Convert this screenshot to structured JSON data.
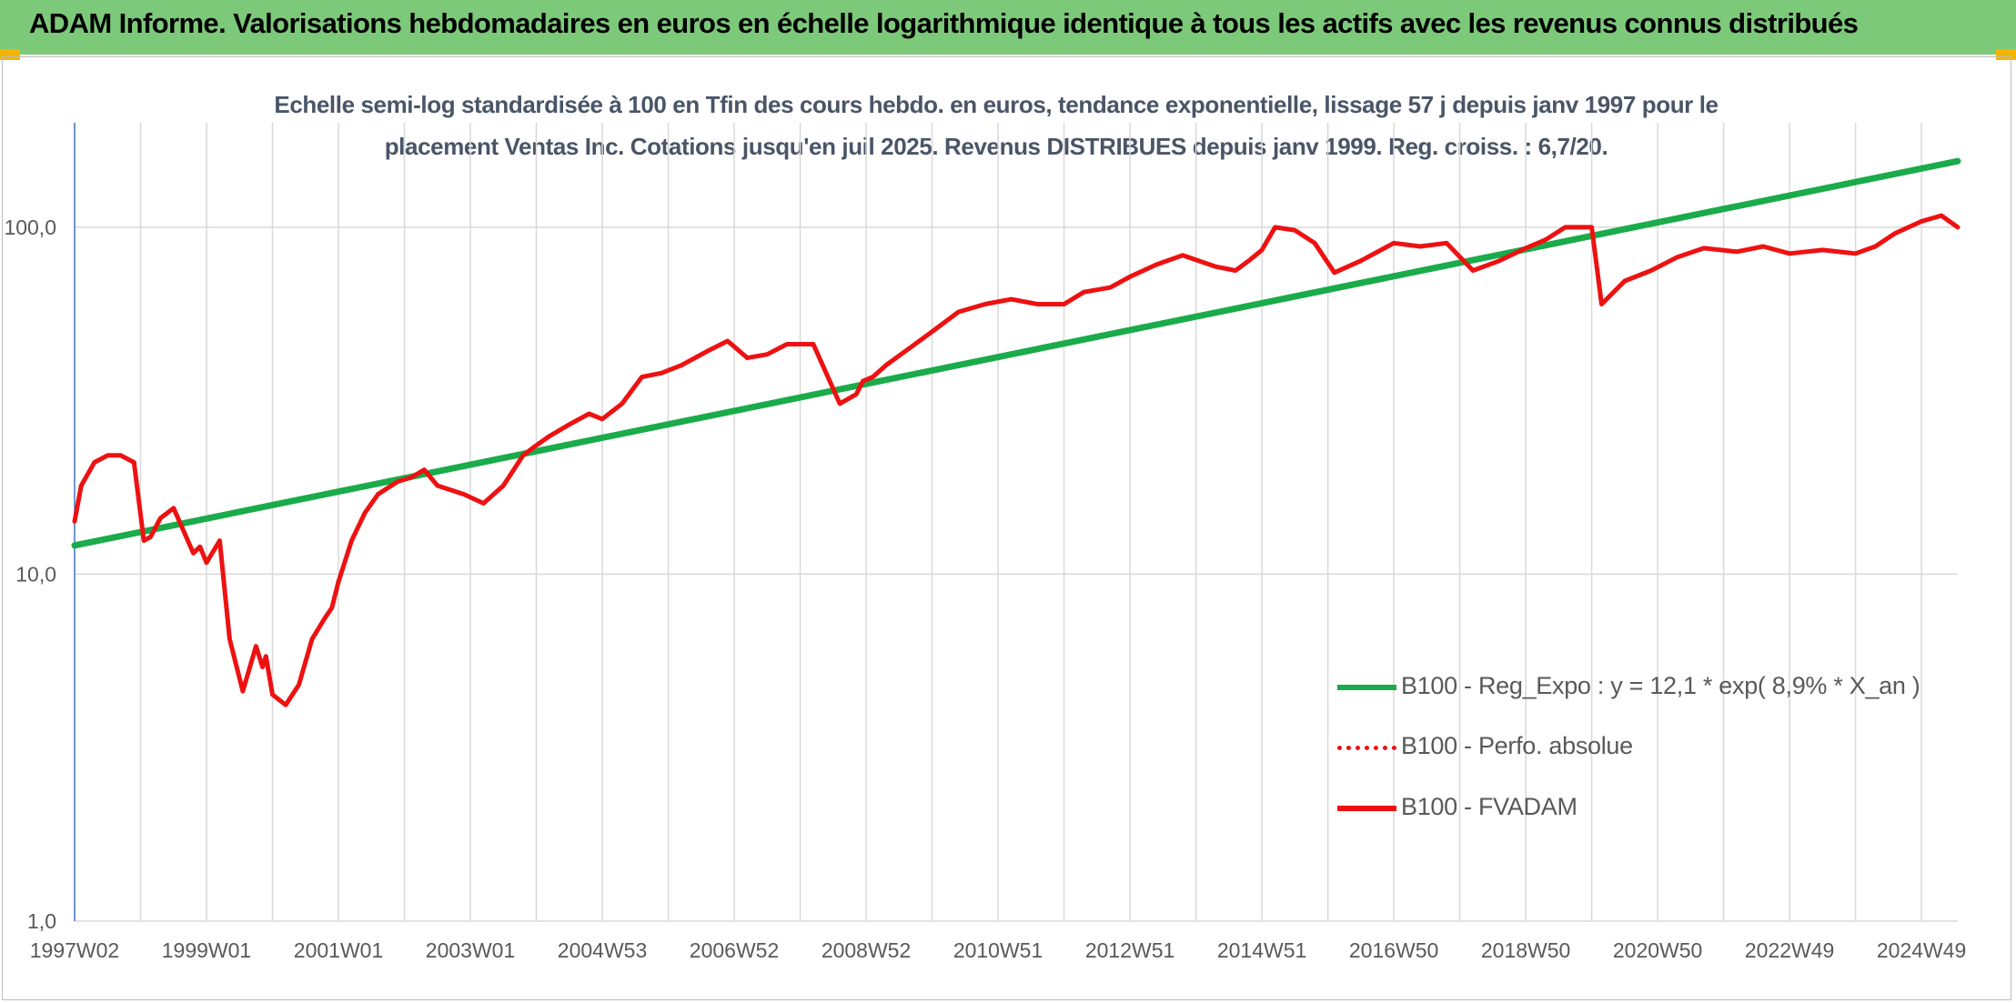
{
  "header": {
    "title": "ADAM Informe. Valorisations hebdomadaires en euros en échelle logarithmique identique à tous les actifs avec les revenus connus distribués"
  },
  "colors": {
    "header_bg": "#7dc97a",
    "trend": "#1aab4a",
    "series": "#ee1111",
    "grid": "#d9d9d9",
    "axis": "#4472c4"
  },
  "chart_data": {
    "type": "line",
    "title": "Echelle semi-log standardisée à 100 en Tfin des cours hebdo. en euros, tendance exponentielle, lissage 57 j depuis janv 1997 pour le placement Ventas Inc. Cotations jusqu'en juil 2025. Revenus DISTRIBUES depuis janv 1999. Reg. croiss. : 6,7/20.",
    "title_lines": [
      "Echelle semi-log standardisée à 100 en Tfin des cours hebdo. en euros, tendance exponentielle, lissage 57 j depuis janv 1997 pour le",
      "placement Ventas Inc. Cotations jusqu'en juil 2025. Revenus DISTRIBUES depuis janv 1999. Reg. croiss. : 6,7/20."
    ],
    "y_scale": "log",
    "ylim": [
      1,
      200
    ],
    "y_ticks": [
      1,
      10,
      100
    ],
    "y_tick_labels": [
      "1,0",
      "10,0",
      "100,0"
    ],
    "xlim": [
      1997.0,
      2025.55
    ],
    "x_tick_labels": [
      "1997W02",
      "1999W01",
      "2001W01",
      "2003W01",
      "2004W53",
      "2006W52",
      "2008W52",
      "2010W51",
      "2012W51",
      "2014W51",
      "2016W50",
      "2018W50",
      "2020W50",
      "2022W49",
      "2024W49"
    ],
    "x_tick_values": [
      1997.0,
      1999.0,
      2001.0,
      2003.0,
      2005.0,
      2007.0,
      2009.0,
      2011.0,
      2013.0,
      2015.0,
      2017.0,
      2019.0,
      2021.0,
      2023.0,
      2025.0
    ],
    "legend_position": "bottom-right",
    "grid": true,
    "series": [
      {
        "name": "B100 - Reg_Expo : y = 12,1 * exp( 8,9% *  X_an )",
        "style": "solid",
        "x": [
          1997.0,
          2025.55
        ],
        "y": [
          12.1,
          155.0
        ]
      },
      {
        "name": "B100 - Perfo. absolue",
        "style": "dotted",
        "x": [],
        "y": []
      },
      {
        "name": "B100 - FVADAM",
        "style": "solid",
        "x": [
          1997.0,
          1997.1,
          1997.3,
          1997.5,
          1997.7,
          1997.9,
          1998.05,
          1998.15,
          1998.3,
          1998.5,
          1998.8,
          1998.9,
          1999.0,
          1999.2,
          1999.35,
          1999.55,
          1999.75,
          1999.85,
          1999.9,
          2000.0,
          2000.2,
          2000.4,
          2000.6,
          2000.8,
          2000.9,
          2001.0,
          2001.2,
          2001.4,
          2001.6,
          2001.9,
          2002.1,
          2002.3,
          2002.5,
          2002.9,
          2003.2,
          2003.5,
          2003.8,
          2004.0,
          2004.2,
          2004.5,
          2004.8,
          2005.0,
          2005.3,
          2005.6,
          2005.9,
          2006.2,
          2006.6,
          2006.9,
          2007.2,
          2007.5,
          2007.8,
          2008.2,
          2008.6,
          2008.85,
          2008.95,
          2009.1,
          2009.3,
          2009.6,
          2010.0,
          2010.4,
          2010.8,
          2011.2,
          2011.6,
          2012.0,
          2012.3,
          2012.7,
          2013.0,
          2013.4,
          2013.8,
          2014.3,
          2014.6,
          2014.8,
          2015.0,
          2015.2,
          2015.5,
          2015.8,
          2016.1,
          2016.5,
          2017.0,
          2017.4,
          2017.8,
          2018.2,
          2018.6,
          2019.0,
          2019.3,
          2019.6,
          2020.0,
          2020.15,
          2020.5,
          2020.9,
          2021.3,
          2021.7,
          2022.2,
          2022.6,
          2023.0,
          2023.5,
          2024.0,
          2024.3,
          2024.6,
          2025.0,
          2025.3,
          2025.55
        ],
        "y": [
          14.2,
          18,
          21,
          22,
          22,
          21,
          12.5,
          12.8,
          14.5,
          15.5,
          11.5,
          12,
          10.8,
          12.5,
          6.5,
          4.6,
          6.2,
          5.4,
          5.8,
          4.5,
          4.2,
          4.8,
          6.5,
          7.5,
          8,
          9.5,
          12.5,
          15,
          17,
          18.5,
          19,
          20,
          18,
          17,
          16,
          18,
          22,
          23.5,
          25,
          27,
          29,
          28,
          31,
          37,
          38,
          40,
          44,
          47,
          42,
          43,
          46,
          46,
          31,
          33,
          36,
          37,
          40,
          44,
          50,
          57,
          60,
          62,
          60,
          60,
          65,
          67,
          72,
          78,
          83,
          77,
          75,
          80,
          86,
          100,
          98,
          90,
          74,
          80,
          90,
          88,
          90,
          75,
          80,
          87,
          92,
          100,
          100,
          60,
          70,
          75,
          82,
          87,
          85,
          88,
          84,
          86,
          84,
          88,
          96,
          104,
          108,
          100
        ]
      }
    ]
  }
}
